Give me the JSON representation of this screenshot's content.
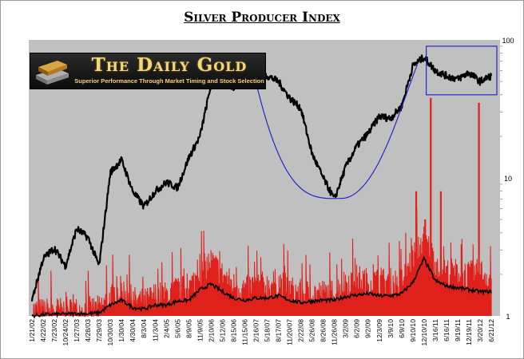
{
  "chart_data": {
    "type": "line",
    "title": "Silver Producer Index",
    "watermark": {
      "brand": "The Daily Gold",
      "tagline": "Superior Performance Through Market Timing and Stock Selection"
    },
    "y_scale": "log",
    "ylim": [
      1,
      100
    ],
    "y_ticks": [
      1,
      10,
      100
    ],
    "x_tick_labels": [
      "1/21/02",
      "4/22/02",
      "7/23/02",
      "10/24/02",
      "1/27/03",
      "4/28/03",
      "7/29/03",
      "10/30/03",
      "1/30/04",
      "4/30/04",
      "8/3/04",
      "11/3/04",
      "2/4/05",
      "5/6/05",
      "8/9/05",
      "11/9/05",
      "2/10/06",
      "5/12/06",
      "8/15/06",
      "11/15/06",
      "2/16/07",
      "5/18/07",
      "8/17/07",
      "11/20/07",
      "2/22/08",
      "5/26/08",
      "8/26/08",
      "11/26/08",
      "3/2/09",
      "6/2/09",
      "9/2/09",
      "12/3/09",
      "3/9/10",
      "6/9/10",
      "9/10/10",
      "12/10/10",
      "3/16/11",
      "6/16/11",
      "9/19/11",
      "12/19/11",
      "3/20/12",
      "6/21/12"
    ],
    "grid": false,
    "colors": {
      "plot_background": "#c0c0c0",
      "price": "#000000",
      "volume": "#e0201a",
      "volume_average": "#000000",
      "cup_curve": "#1a1acc",
      "box": "#1a1acc"
    },
    "series": [
      {
        "role": "price",
        "x": [
          0,
          1,
          2,
          3,
          4,
          5,
          6,
          7,
          8,
          9,
          10,
          11,
          12,
          13,
          14,
          15,
          16,
          17,
          18,
          19,
          20,
          21,
          22,
          23,
          24,
          25,
          26,
          27,
          28,
          29,
          30,
          31,
          32,
          33,
          34,
          35,
          36,
          37,
          38,
          39,
          40,
          41
        ],
        "values": [
          1.3,
          2.6,
          3.1,
          2.3,
          4.3,
          3.7,
          2.3,
          11,
          13.5,
          8,
          6.2,
          8,
          9.3,
          8.5,
          14,
          20,
          48,
          54,
          45,
          60,
          58,
          55,
          50,
          38,
          32,
          15,
          10,
          7,
          12,
          17,
          21,
          28,
          27,
          33,
          65,
          75,
          60,
          55,
          52,
          58,
          50,
          55
        ]
      },
      {
        "role": "volume",
        "x": [
          0,
          1,
          2,
          3,
          4,
          5,
          6,
          7,
          8,
          9,
          10,
          11,
          12,
          13,
          14,
          15,
          16,
          17,
          18,
          19,
          20,
          21,
          22,
          23,
          24,
          25,
          26,
          27,
          28,
          29,
          30,
          31,
          32,
          33,
          34,
          35,
          36,
          37,
          38,
          39,
          40,
          41
        ],
        "values": [
          1.03,
          1.03,
          1.05,
          1.04,
          1.05,
          1.05,
          1.08,
          1.3,
          1.5,
          1.25,
          1.2,
          1.35,
          1.35,
          1.5,
          1.5,
          2.0,
          2.4,
          1.9,
          1.6,
          1.5,
          1.6,
          1.6,
          1.7,
          1.5,
          1.4,
          1.4,
          1.4,
          1.4,
          1.7,
          1.8,
          1.7,
          1.7,
          1.7,
          1.7,
          2.6,
          3.5,
          2.4,
          2.0,
          2.0,
          1.9,
          2.0,
          1.8
        ]
      },
      {
        "role": "volume_average",
        "x": [
          0,
          1,
          2,
          3,
          4,
          5,
          6,
          7,
          8,
          9,
          10,
          11,
          12,
          13,
          14,
          15,
          16,
          17,
          18,
          19,
          20,
          21,
          22,
          23,
          24,
          25,
          26,
          27,
          28,
          29,
          30,
          31,
          32,
          33,
          34,
          35,
          36,
          37,
          38,
          39,
          40,
          41
        ],
        "values": [
          1.0,
          1.02,
          1.03,
          1.03,
          1.04,
          1.04,
          1.05,
          1.2,
          1.3,
          1.15,
          1.12,
          1.2,
          1.2,
          1.28,
          1.3,
          1.55,
          1.7,
          1.5,
          1.35,
          1.3,
          1.35,
          1.35,
          1.4,
          1.3,
          1.25,
          1.28,
          1.3,
          1.3,
          1.38,
          1.42,
          1.45,
          1.4,
          1.4,
          1.45,
          1.75,
          2.6,
          1.8,
          1.65,
          1.6,
          1.55,
          1.5,
          1.5
        ]
      }
    ],
    "volume_spikes": [
      {
        "x": 35.6,
        "value": 38
      },
      {
        "x": 39.9,
        "value": 35
      },
      {
        "x": 34.3,
        "value": 8
      },
      {
        "x": 36.5,
        "value": 8
      },
      {
        "x": 35.1,
        "value": 5
      }
    ],
    "annotations": [
      {
        "type": "cup_curve",
        "x_from": 19.6,
        "x_mid": 27.6,
        "x_to": 34.4,
        "y_from": 68,
        "y_mid": 7.1,
        "y_to": 66
      },
      {
        "type": "box",
        "x_from": 35.2,
        "x_to": 41.5,
        "y_from": 40,
        "y_to": 90
      }
    ]
  }
}
